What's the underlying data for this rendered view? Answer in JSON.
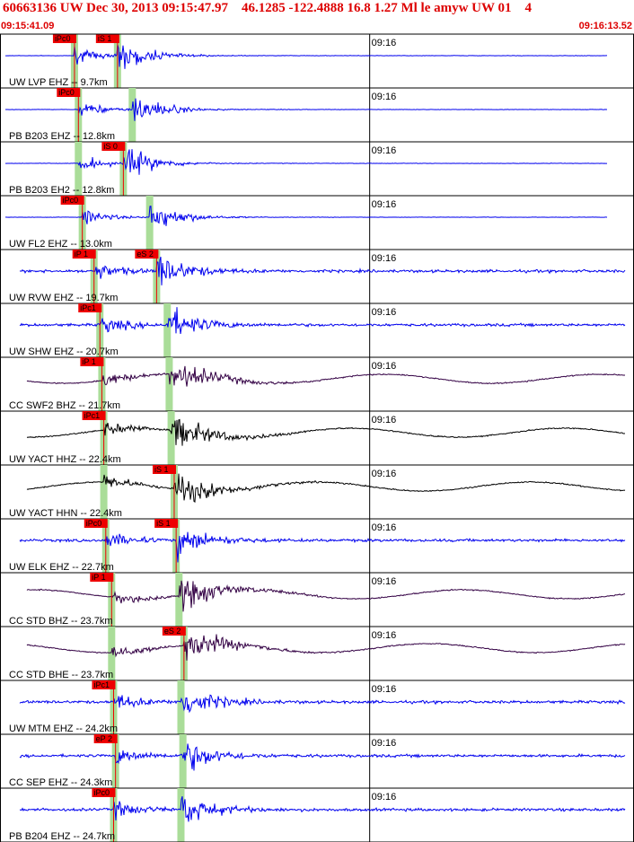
{
  "header": {
    "title": "60663136 UW Dec 30, 2013 09:15:47.97    46.1285 -122.4888 16.8 1.27 Ml le amyw UW 01    4",
    "start_time": "09:15:41.09",
    "end_time": "09:16:13.52"
  },
  "colors": {
    "header_text": "#dd0000",
    "trace_blue": "#0000ee",
    "trace_purple": "#330044",
    "trace_black": "#000000",
    "pick_box": "#ee0000",
    "pick_band": "#aadd99"
  },
  "chart_data": {
    "type": "seismogram",
    "time_window": [
      "09:15:41.09",
      "09:16:13.52"
    ],
    "minute_tick_label": "09:16",
    "traces": [
      {
        "label": "UW LVP EHZ -- 9.7km",
        "color": "blue",
        "picks": [
          {
            "label": "iPc0",
            "time": "09:15:44.9"
          },
          {
            "label": "iS 1",
            "time": "09:15:47.1"
          }
        ]
      },
      {
        "label": "PB B203 EHZ -- 12.8km",
        "color": "blue",
        "picks": [
          {
            "label": "iPc0",
            "time": "09:15:45.1"
          }
        ]
      },
      {
        "label": "PB B203 EH2 -- 12.8km",
        "color": "blue",
        "picks": [
          {
            "label": "iS 0",
            "time": "09:15:47.4"
          }
        ]
      },
      {
        "label": "UW FL2 EHZ -- 13.0km",
        "color": "blue",
        "picks": [
          {
            "label": "iPc0",
            "time": "09:15:45.3"
          }
        ]
      },
      {
        "label": "UW RVW EHZ -- 19.7km",
        "color": "blue",
        "picks": [
          {
            "label": "iP 1",
            "time": "09:15:45.9"
          },
          {
            "label": "eS 2",
            "time": "09:15:49.1"
          }
        ]
      },
      {
        "label": "UW SHW EHZ -- 20.7km",
        "color": "blue",
        "picks": [
          {
            "label": "iPc1",
            "time": "09:15:46.2"
          }
        ]
      },
      {
        "label": "CC SWF2 BHZ -- 21.7km",
        "color": "purple",
        "picks": [
          {
            "label": "iP 1",
            "time": "09:15:46.3"
          }
        ]
      },
      {
        "label": "UW YACT HHZ -- 22.4km",
        "color": "black",
        "picks": [
          {
            "label": "iPc1",
            "time": "09:15:46.4"
          }
        ]
      },
      {
        "label": "UW YACT HHN -- 22.4km",
        "color": "black",
        "picks": [
          {
            "label": "iS 1",
            "time": "09:15:50.0"
          }
        ]
      },
      {
        "label": "UW ELK EHZ -- 22.7km",
        "color": "blue",
        "picks": [
          {
            "label": "iPc0",
            "time": "09:15:46.5"
          },
          {
            "label": "iS 1",
            "time": "09:15:50.1"
          }
        ]
      },
      {
        "label": "CC STD BHZ -- 23.7km",
        "color": "purple",
        "picks": [
          {
            "label": "iP 1",
            "time": "09:15:46.8"
          }
        ]
      },
      {
        "label": "CC STD BHE -- 23.7km",
        "color": "purple",
        "picks": [
          {
            "label": "eS 2",
            "time": "09:15:50.5"
          }
        ]
      },
      {
        "label": "UW MTM EHZ -- 24.2km",
        "color": "blue",
        "picks": [
          {
            "label": "iPc1",
            "time": "09:15:46.9"
          }
        ]
      },
      {
        "label": "CC SEP EHZ -- 24.3km",
        "color": "blue",
        "picks": [
          {
            "label": "eP 2",
            "time": "09:15:47.0"
          }
        ]
      },
      {
        "label": "PB B204 EHZ -- 24.7km",
        "color": "blue",
        "picks": [
          {
            "label": "iPc0",
            "time": "09:15:46.9"
          }
        ]
      }
    ]
  }
}
